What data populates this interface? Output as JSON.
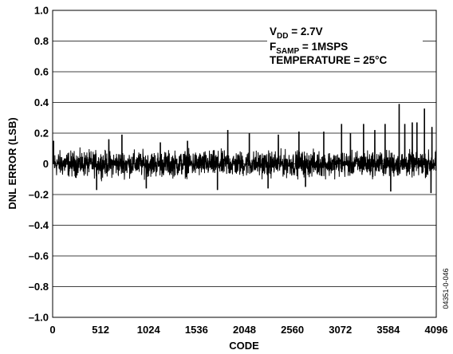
{
  "chart_data": {
    "type": "line",
    "xlabel": "CODE",
    "ylabel": "DNL ERROR (LSB)",
    "xlim": [
      0,
      4096
    ],
    "ylim": [
      -1.0,
      1.0
    ],
    "x_ticks": [
      0,
      512,
      1024,
      1536,
      2048,
      2560,
      3072,
      3584,
      4096
    ],
    "x_tick_labels": [
      "0",
      "512",
      "1024",
      "1536",
      "2048",
      "2560",
      "3072",
      "3584",
      "4096"
    ],
    "y_ticks": [
      1.0,
      0.8,
      0.6,
      0.4,
      0.2,
      0,
      -0.2,
      -0.4,
      -0.6,
      -0.8,
      -1.0
    ],
    "y_tick_labels": [
      "1.0",
      "0.8",
      "0.6",
      "0.4",
      "0.2",
      "0",
      "–0.2",
      "–0.4",
      "–0.6",
      "–0.8",
      "–1.0"
    ],
    "grid": "horizontal",
    "line_color": "#000000",
    "noise_band": {
      "description": "dense noise, mostly within -0.12 to 0.12 LSB across codes 0-4096",
      "typical_min": -0.12,
      "typical_max": 0.12
    },
    "spikes": [
      {
        "x": 10,
        "y": 0.15
      },
      {
        "x": 470,
        "y": -0.17
      },
      {
        "x": 600,
        "y": 0.16
      },
      {
        "x": 740,
        "y": 0.19
      },
      {
        "x": 1000,
        "y": -0.16
      },
      {
        "x": 1150,
        "y": 0.14
      },
      {
        "x": 1440,
        "y": 0.15
      },
      {
        "x": 1760,
        "y": -0.17
      },
      {
        "x": 1870,
        "y": 0.22
      },
      {
        "x": 2100,
        "y": 0.2
      },
      {
        "x": 2300,
        "y": -0.16
      },
      {
        "x": 2410,
        "y": 0.19
      },
      {
        "x": 2630,
        "y": 0.21
      },
      {
        "x": 2700,
        "y": -0.15
      },
      {
        "x": 2895,
        "y": 0.21
      },
      {
        "x": 3085,
        "y": 0.26
      },
      {
        "x": 3180,
        "y": 0.2
      },
      {
        "x": 3320,
        "y": 0.26
      },
      {
        "x": 3440,
        "y": 0.22
      },
      {
        "x": 3550,
        "y": 0.26
      },
      {
        "x": 3610,
        "y": -0.18
      },
      {
        "x": 3700,
        "y": 0.39
      },
      {
        "x": 3760,
        "y": 0.26
      },
      {
        "x": 3840,
        "y": 0.27
      },
      {
        "x": 3890,
        "y": 0.27
      },
      {
        "x": 3970,
        "y": 0.36
      },
      {
        "x": 4050,
        "y": 0.24
      },
      {
        "x": 4040,
        "y": -0.19
      }
    ],
    "annotations": {
      "vdd_main": "V",
      "vdd_sub": "DD",
      "vdd_rest": " = 2.7V",
      "fsamp_main": "F",
      "fsamp_sub": "SAMP",
      "fsamp_rest": " = 1MSPS",
      "temperature": "TEMPERATURE = 25°C"
    },
    "figure_id": "04351-0-046"
  }
}
